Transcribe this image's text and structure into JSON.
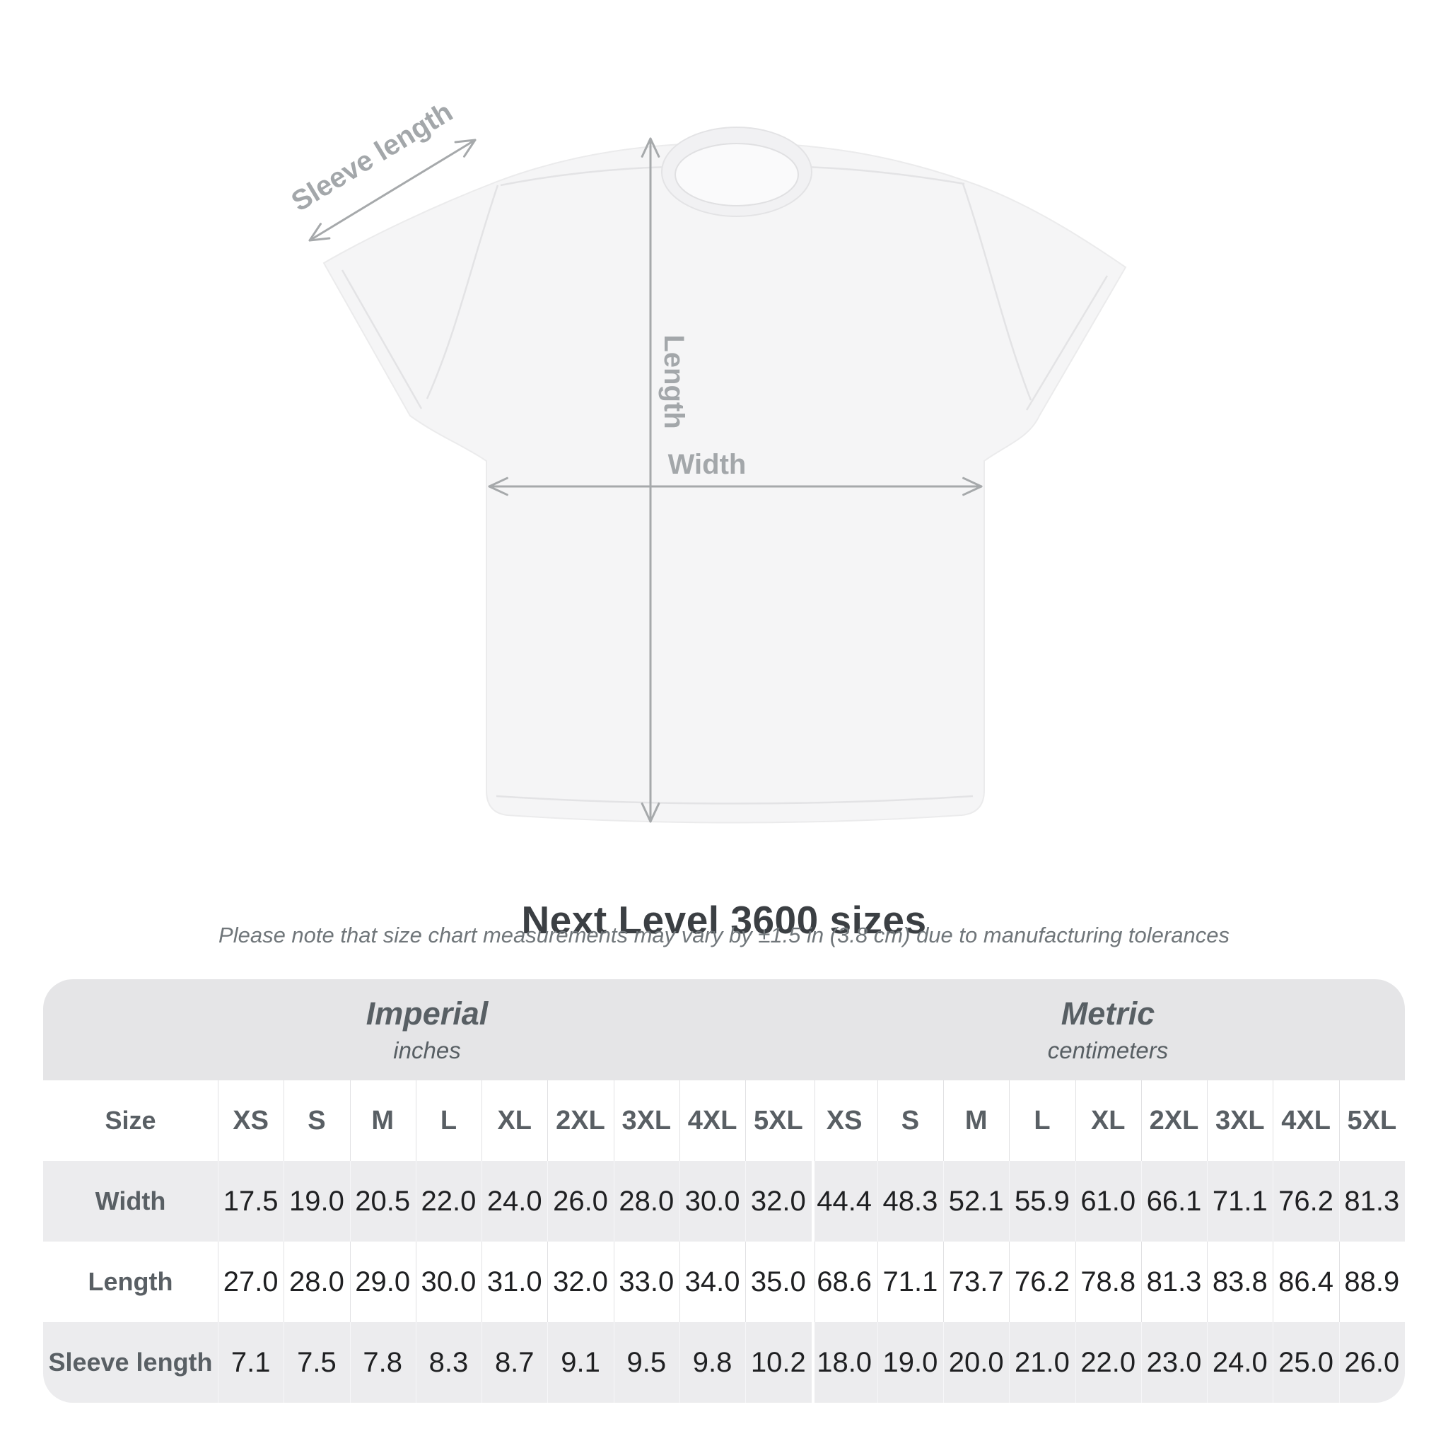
{
  "diagram": {
    "labels": {
      "sleeve_length": "Sleeve length",
      "length": "Length",
      "width": "Width"
    }
  },
  "title": "Next Level 3600 sizes",
  "subtitle": "Please note that size chart measurements may vary by ±1.5 in (3.8 cm) due to manufacturing tolerances",
  "table": {
    "size_header": "Size",
    "unit_groups": [
      {
        "name": "Imperial",
        "unit": "inches"
      },
      {
        "name": "Metric",
        "unit": "centimeters"
      }
    ],
    "sizes": [
      "XS",
      "S",
      "M",
      "L",
      "XL",
      "2XL",
      "3XL",
      "4XL",
      "5XL"
    ],
    "rows": [
      {
        "label": "Width",
        "imperial": [
          "17.5",
          "19.0",
          "20.5",
          "22.0",
          "24.0",
          "26.0",
          "28.0",
          "30.0",
          "32.0"
        ],
        "metric": [
          "44.4",
          "48.3",
          "52.1",
          "55.9",
          "61.0",
          "66.1",
          "71.1",
          "76.2",
          "81.3"
        ]
      },
      {
        "label": "Length",
        "imperial": [
          "27.0",
          "28.0",
          "29.0",
          "30.0",
          "31.0",
          "32.0",
          "33.0",
          "34.0",
          "35.0"
        ],
        "metric": [
          "68.6",
          "71.1",
          "73.7",
          "76.2",
          "78.8",
          "81.3",
          "83.8",
          "86.4",
          "88.9"
        ]
      },
      {
        "label": "Sleeve length",
        "imperial": [
          "7.1",
          "7.5",
          "7.8",
          "8.3",
          "8.7",
          "9.1",
          "9.5",
          "9.8",
          "10.2"
        ],
        "metric": [
          "18.0",
          "19.0",
          "20.0",
          "21.0",
          "22.0",
          "23.0",
          "24.0",
          "25.0",
          "26.0"
        ]
      }
    ]
  },
  "colors": {
    "arrow_gray": "#a6a9ab",
    "label_gray": "#a3a7aa",
    "band_bg": "#e5e5e7",
    "row_alt_bg": "#ececee",
    "table_label_text": "#595f64",
    "value_text": "#1f2022",
    "title_text": "#3b3f43",
    "shirt_fill": "#f5f5f6"
  }
}
